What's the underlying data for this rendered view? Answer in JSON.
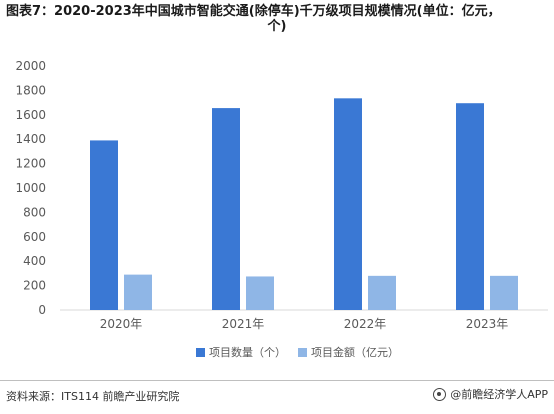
{
  "title_line1": "图表7：2020-2023年中国城市智能交通(除停车)千万级项目规模情况(单位：亿元，",
  "title_line2": "个)",
  "footer": {
    "source": "资料来源：ITS114 前瞻产业研究院",
    "brand": "@前瞻经济学人APP"
  },
  "colors": {
    "series1": "#3a78d4",
    "series2": "#8fb6e6",
    "grid": "#d9d9d9",
    "axis_text": "#595959"
  },
  "chart_data": {
    "type": "bar",
    "categories": [
      "2020年",
      "2021年",
      "2022年",
      "2023年"
    ],
    "series": [
      {
        "name": "项目数量（个）",
        "values": [
          1390,
          1655,
          1735,
          1695
        ]
      },
      {
        "name": "项目金额（亿元）",
        "values": [
          290,
          275,
          280,
          280
        ]
      }
    ],
    "yticks": [
      0,
      200,
      400,
      600,
      800,
      1000,
      1200,
      1400,
      1600,
      1800,
      2000
    ],
    "ylim": [
      0,
      2000
    ],
    "grid": false,
    "legend": "bottom"
  }
}
